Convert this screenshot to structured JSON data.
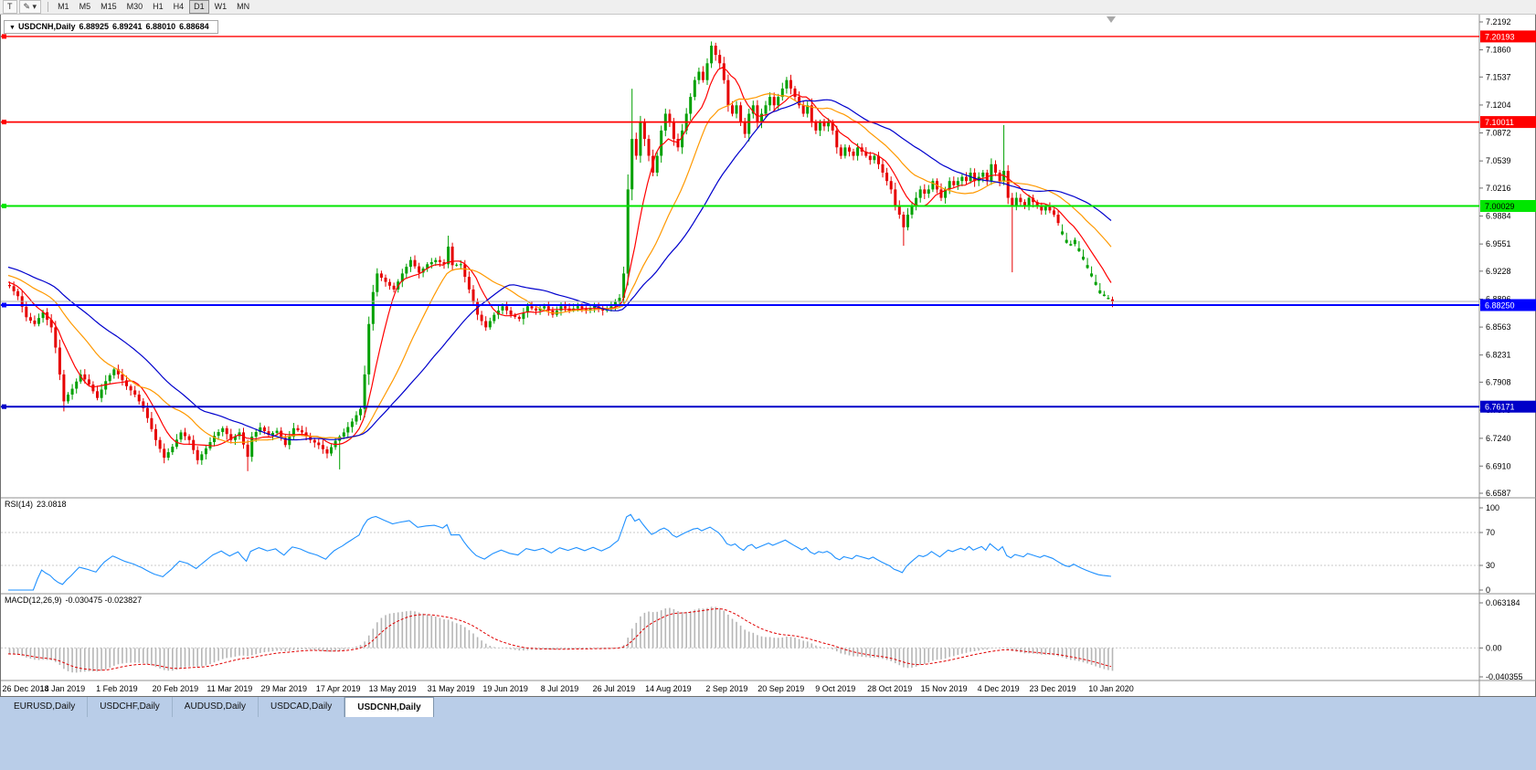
{
  "toolbar": {
    "tools": [
      {
        "name": "text-tool-button",
        "glyph": "T"
      },
      {
        "name": "draw-tool-button",
        "glyph": "✎",
        "caret": "▾"
      }
    ],
    "timeframes": [
      "M1",
      "M5",
      "M15",
      "M30",
      "H1",
      "H4",
      "D1",
      "W1",
      "MN"
    ],
    "active_timeframe": "D1"
  },
  "chart_header": {
    "collapse_icon": "▼",
    "symbol": "USDCNH,Daily",
    "open": "6.88925",
    "high": "6.89241",
    "low": "6.88010",
    "close": "6.88684"
  },
  "price_axis": {
    "ticks": [
      "7.2192",
      "7.1860",
      "7.1537",
      "7.1204",
      "7.0872",
      "7.0539",
      "7.0216",
      "6.9884",
      "6.9551",
      "6.9228",
      "6.8896",
      "6.8563",
      "6.8231",
      "6.7908",
      "6.7575",
      "6.7240",
      "6.6910",
      "6.6587"
    ]
  },
  "hlines": [
    {
      "price": 7.20193,
      "label": "7.20193",
      "color": "#ff0000",
      "width": 1.4,
      "text_color": "#ffffff"
    },
    {
      "price": 7.10011,
      "label": "7.10011",
      "color": "#ff0000",
      "width": 1.8,
      "text_color": "#ffffff"
    },
    {
      "price": 7.00029,
      "label": "7.00029",
      "color": "#00e600",
      "width": 2,
      "text_color": "#000000"
    },
    {
      "price": 6.8825,
      "label": "6.88250",
      "color": "#0000ff",
      "width": 2,
      "text_color": "#ffffff"
    },
    {
      "price": 6.76171,
      "label": "6.76171",
      "color": "#0000c8",
      "width": 2,
      "text_color": "#ffffff"
    }
  ],
  "bid_line": {
    "price": 6.88684,
    "color": "#b0b0b0"
  },
  "indicators": {
    "rsi": {
      "label": "RSI(14)",
      "value": "23.0818",
      "levels": [
        "100",
        "70",
        "30",
        "0"
      ],
      "color": "#1e90ff"
    },
    "macd": {
      "label": "MACD(12,26,9)",
      "value": "-0.030475 -0.023827",
      "axis": [
        "0.063184",
        "0.00",
        "-0.040355"
      ]
    }
  },
  "time_axis": {
    "labels": [
      "26 Dec 2018",
      "14 Jan 2019",
      "1 Feb 2019",
      "20 Feb 2019",
      "11 Mar 2019",
      "29 Mar 2019",
      "17 Apr 2019",
      "13 May 2019",
      "31 May 2019",
      "19 Jun 2019",
      "8 Jul 2019",
      "26 Jul 2019",
      "14 Aug 2019",
      "2 Sep 2019",
      "20 Sep 2019",
      "9 Oct 2019",
      "28 Oct 2019",
      "15 Nov 2019",
      "4 Dec 2019",
      "23 Dec 2019",
      "10 Jan 2020"
    ]
  },
  "tabs": {
    "items": [
      "EURUSD,Daily",
      "USDCHF,Daily",
      "AUDUSD,Daily",
      "USDCAD,Daily",
      "USDCNH,Daily"
    ],
    "active_index": 4
  },
  "colors": {
    "candle_up": "#00a000",
    "candle_down": "#e60000",
    "macd_hist": "#b6b6b6",
    "macd_signal": "#e00000",
    "bottom_bar": "#b9cde8"
  },
  "chart_data": {
    "type": "candlestick",
    "symbol": "USDCNH",
    "timeframe": "Daily",
    "y_axis": {
      "top": 7.2192,
      "bottom": 6.6587
    },
    "visible_range": {
      "start_index": 60,
      "end_index": 324
    },
    "x_label_indices": [
      60,
      73,
      86,
      100,
      113,
      126,
      139,
      152,
      166,
      179,
      192,
      205,
      218,
      232,
      245,
      258,
      271,
      284,
      297,
      310,
      324
    ],
    "green_descent_from": 312,
    "last_candle": {
      "open": 6.88925,
      "high": 6.89241,
      "low": 6.8801,
      "close": 6.88684
    },
    "moving_averages": [
      {
        "period": 8,
        "color": "#ff0000",
        "name": "ma-fast-line"
      },
      {
        "period": 20,
        "color": "#ff9900",
        "name": "ma-medium-line"
      },
      {
        "period": 35,
        "color": "#0000cd",
        "name": "ma-slow-line"
      }
    ],
    "rsi_period": 14,
    "macd_params": [
      12,
      26,
      9
    ],
    "wick_overrides": [
      {
        "i": 73,
        "low": 6.756
      },
      {
        "i": 117,
        "low": 6.685
      },
      {
        "i": 139,
        "low": 6.687
      },
      {
        "i": 165,
        "high": 6.965
      },
      {
        "i": 209,
        "high": 7.1397
      },
      {
        "i": 228,
        "high": 7.196
      },
      {
        "i": 274,
        "low": 6.953
      },
      {
        "i": 298,
        "high": 7.0966
      },
      {
        "i": 300,
        "low": 6.9215
      }
    ],
    "close_waypoints": [
      [
        0,
        6.975
      ],
      [
        15,
        6.955
      ],
      [
        30,
        6.945
      ],
      [
        45,
        6.925
      ],
      [
        55,
        6.912
      ],
      [
        60,
        6.905
      ],
      [
        62,
        6.893
      ],
      [
        64,
        6.868
      ],
      [
        66,
        6.86
      ],
      [
        68,
        6.874
      ],
      [
        70,
        6.856
      ],
      [
        71,
        6.832
      ],
      [
        72,
        6.8
      ],
      [
        73,
        6.768
      ],
      [
        74,
        6.776
      ],
      [
        75,
        6.783
      ],
      [
        77,
        6.8
      ],
      [
        79,
        6.788
      ],
      [
        81,
        6.772
      ],
      [
        83,
        6.792
      ],
      [
        85,
        6.806
      ],
      [
        86,
        6.8
      ],
      [
        88,
        6.786
      ],
      [
        90,
        6.776
      ],
      [
        92,
        6.76
      ],
      [
        93,
        6.748
      ],
      [
        95,
        6.722
      ],
      [
        97,
        6.701
      ],
      [
        99,
        6.714
      ],
      [
        101,
        6.731
      ],
      [
        103,
        6.722
      ],
      [
        105,
        6.698
      ],
      [
        107,
        6.712
      ],
      [
        109,
        6.727
      ],
      [
        111,
        6.736
      ],
      [
        113,
        6.722
      ],
      [
        115,
        6.731
      ],
      [
        117,
        6.702
      ],
      [
        118,
        6.726
      ],
      [
        120,
        6.737
      ],
      [
        122,
        6.728
      ],
      [
        124,
        6.733
      ],
      [
        126,
        6.716
      ],
      [
        128,
        6.736
      ],
      [
        130,
        6.731
      ],
      [
        132,
        6.722
      ],
      [
        134,
        6.716
      ],
      [
        136,
        6.706
      ],
      [
        138,
        6.721
      ],
      [
        140,
        6.731
      ],
      [
        142,
        6.744
      ],
      [
        144,
        6.759
      ],
      [
        145,
        6.8
      ],
      [
        146,
        6.86
      ],
      [
        147,
        6.898
      ],
      [
        148,
        6.92
      ],
      [
        150,
        6.91
      ],
      [
        152,
        6.901
      ],
      [
        154,
        6.92
      ],
      [
        156,
        6.936
      ],
      [
        158,
        6.921
      ],
      [
        160,
        6.931
      ],
      [
        162,
        6.936
      ],
      [
        164,
        6.931
      ],
      [
        165,
        6.952
      ],
      [
        166,
        6.93
      ],
      [
        168,
        6.931
      ],
      [
        170,
        6.901
      ],
      [
        172,
        6.871
      ],
      [
        174,
        6.856
      ],
      [
        176,
        6.871
      ],
      [
        178,
        6.881
      ],
      [
        180,
        6.871
      ],
      [
        182,
        6.866
      ],
      [
        184,
        6.881
      ],
      [
        186,
        6.876
      ],
      [
        188,
        6.881
      ],
      [
        190,
        6.871
      ],
      [
        192,
        6.881
      ],
      [
        194,
        6.876
      ],
      [
        196,
        6.881
      ],
      [
        198,
        6.876
      ],
      [
        200,
        6.881
      ],
      [
        202,
        6.876
      ],
      [
        204,
        6.881
      ],
      [
        206,
        6.891
      ],
      [
        207,
        6.92
      ],
      [
        208,
        7.02
      ],
      [
        209,
        7.08
      ],
      [
        210,
        7.06
      ],
      [
        211,
        7.1
      ],
      [
        212,
        7.08
      ],
      [
        213,
        7.06
      ],
      [
        214,
        7.04
      ],
      [
        215,
        7.06
      ],
      [
        216,
        7.09
      ],
      [
        217,
        7.11
      ],
      [
        218,
        7.1
      ],
      [
        219,
        7.08
      ],
      [
        220,
        7.07
      ],
      [
        221,
        7.09
      ],
      [
        222,
        7.11
      ],
      [
        223,
        7.13
      ],
      [
        224,
        7.15
      ],
      [
        225,
        7.16
      ],
      [
        226,
        7.15
      ],
      [
        227,
        7.17
      ],
      [
        228,
        7.191
      ],
      [
        229,
        7.18
      ],
      [
        230,
        7.17
      ],
      [
        231,
        7.15
      ],
      [
        232,
        7.12
      ],
      [
        233,
        7.11
      ],
      [
        234,
        7.12
      ],
      [
        235,
        7.1
      ],
      [
        236,
        7.086
      ],
      [
        237,
        7.11
      ],
      [
        238,
        7.12
      ],
      [
        239,
        7.1
      ],
      [
        240,
        7.11
      ],
      [
        241,
        7.12
      ],
      [
        242,
        7.13
      ],
      [
        243,
        7.12
      ],
      [
        244,
        7.13
      ],
      [
        245,
        7.14
      ],
      [
        246,
        7.15
      ],
      [
        247,
        7.14
      ],
      [
        248,
        7.13
      ],
      [
        249,
        7.12
      ],
      [
        250,
        7.11
      ],
      [
        251,
        7.12
      ],
      [
        252,
        7.1
      ],
      [
        253,
        7.09
      ],
      [
        254,
        7.1
      ],
      [
        255,
        7.095
      ],
      [
        256,
        7.1
      ],
      [
        257,
        7.09
      ],
      [
        258,
        7.07
      ],
      [
        259,
        7.06
      ],
      [
        260,
        7.07
      ],
      [
        261,
        7.065
      ],
      [
        262,
        7.06
      ],
      [
        263,
        7.07
      ],
      [
        264,
        7.065
      ],
      [
        265,
        7.06
      ],
      [
        266,
        7.055
      ],
      [
        267,
        7.06
      ],
      [
        268,
        7.05
      ],
      [
        269,
        7.04
      ],
      [
        270,
        7.03
      ],
      [
        271,
        7.02
      ],
      [
        272,
        7.0
      ],
      [
        273,
        6.99
      ],
      [
        274,
        6.975
      ],
      [
        275,
        6.99
      ],
      [
        276,
        7.0
      ],
      [
        277,
        7.01
      ],
      [
        278,
        7.02
      ],
      [
        279,
        7.015
      ],
      [
        280,
        7.02
      ],
      [
        281,
        7.03
      ],
      [
        282,
        7.02
      ],
      [
        283,
        7.01
      ],
      [
        284,
        7.02
      ],
      [
        285,
        7.03
      ],
      [
        286,
        7.025
      ],
      [
        287,
        7.03
      ],
      [
        288,
        7.035
      ],
      [
        289,
        7.03
      ],
      [
        290,
        7.04
      ],
      [
        291,
        7.03
      ],
      [
        292,
        7.035
      ],
      [
        293,
        7.04
      ],
      [
        294,
        7.03
      ],
      [
        295,
        7.05
      ],
      [
        296,
        7.04
      ],
      [
        297,
        7.03
      ],
      [
        298,
        7.042
      ],
      [
        299,
        7.01
      ],
      [
        300,
        7.0
      ],
      [
        301,
        7.01
      ],
      [
        302,
        7.005
      ],
      [
        303,
        7.0
      ],
      [
        304,
        7.01
      ],
      [
        305,
        7.005
      ],
      [
        306,
        7.0
      ],
      [
        307,
        6.995
      ],
      [
        308,
        7.0
      ],
      [
        309,
        6.995
      ],
      [
        310,
        6.99
      ],
      [
        311,
        6.98
      ],
      [
        312,
        6.97
      ],
      [
        313,
        6.96
      ],
      [
        314,
        6.955
      ],
      [
        315,
        6.96
      ],
      [
        316,
        6.95
      ],
      [
        317,
        6.94
      ],
      [
        318,
        6.93
      ],
      [
        319,
        6.92
      ],
      [
        320,
        6.91
      ],
      [
        321,
        6.9
      ],
      [
        322,
        6.895
      ],
      [
        323,
        6.891
      ],
      [
        324,
        6.88684
      ]
    ]
  }
}
